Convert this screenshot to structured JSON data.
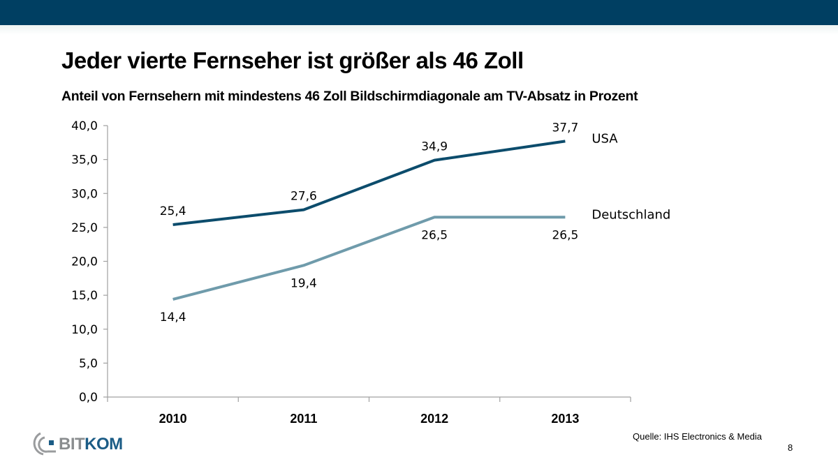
{
  "header": {
    "title": "Jeder vierte Fernseher ist größer als 46 Zoll",
    "subtitle": "Anteil von Fernsehern mit mindestens 46 Zoll Bildschirmdiagonale am TV-Absatz in Prozent"
  },
  "footer": {
    "source": "Quelle: IHS Electronics & Media",
    "page_number": "8",
    "logo": {
      "part1": "BIT",
      "part2": "KOM"
    }
  },
  "colors": {
    "topbar": "#003f62",
    "usa": "#0c4c6c",
    "deutschland": "#6f9bab",
    "axis": "#a0a0a0"
  },
  "chart_data": {
    "type": "line",
    "title": "Jeder vierte Fernseher ist größer als 46 Zoll",
    "subtitle": "Anteil von Fernsehern mit mindestens 46 Zoll Bildschirmdiagonale am TV-Absatz in Prozent",
    "xlabel": "",
    "ylabel": "",
    "categories": [
      "2010",
      "2011",
      "2012",
      "2013"
    ],
    "ylim": [
      0,
      40
    ],
    "yticks": [
      0,
      5,
      10,
      15,
      20,
      25,
      30,
      35,
      40
    ],
    "ytick_labels": [
      "0,0",
      "5,0",
      "10,0",
      "15,0",
      "20,0",
      "25,0",
      "30,0",
      "35,0",
      "40,0"
    ],
    "grid": false,
    "legend": "inline-right",
    "series": [
      {
        "name": "USA",
        "values": [
          25.4,
          27.6,
          34.9,
          37.7
        ],
        "labels": [
          "25,4",
          "27,6",
          "34,9",
          "37,7"
        ],
        "label_position": "above",
        "color": "#0c4c6c"
      },
      {
        "name": "Deutschland",
        "values": [
          14.4,
          19.4,
          26.5,
          26.5
        ],
        "labels": [
          "14,4",
          "19,4",
          "26,5",
          "26,5"
        ],
        "label_position": "below",
        "color": "#6f9bab"
      }
    ]
  }
}
